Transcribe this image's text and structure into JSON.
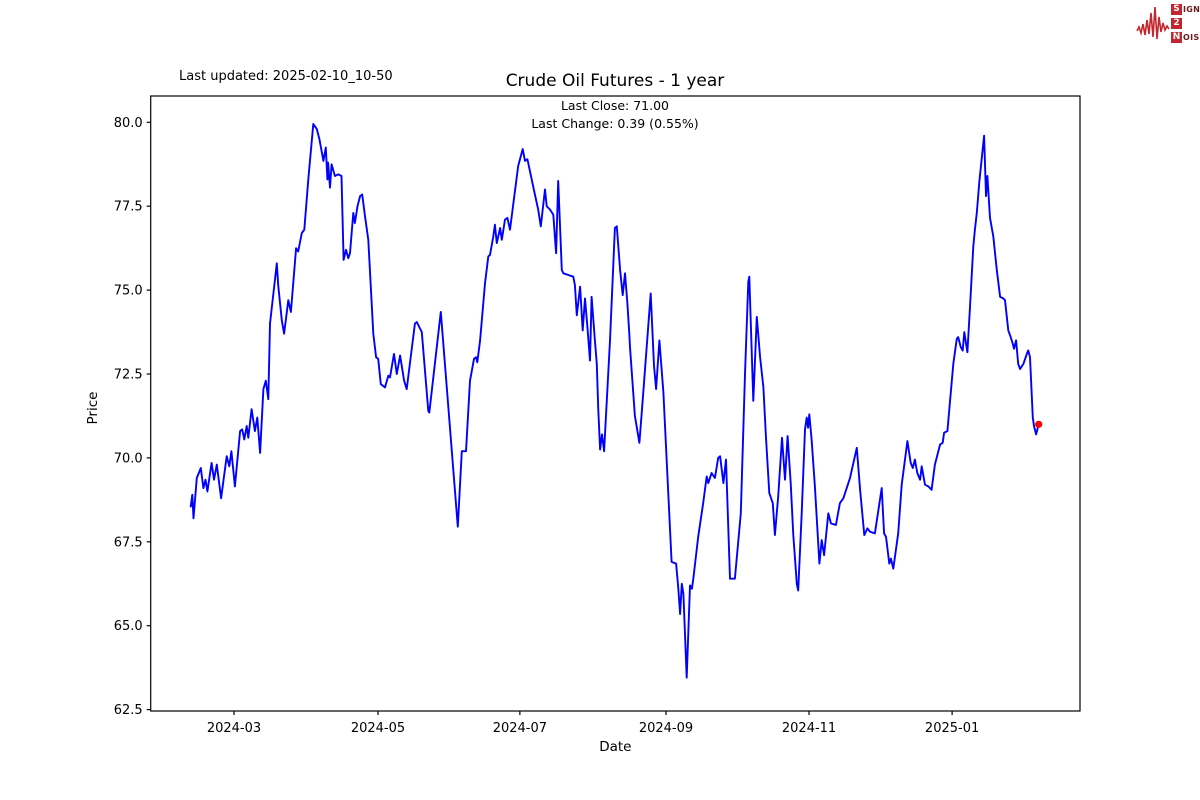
{
  "header": {
    "last_updated": "Last updated: 2025-02-10_10-50",
    "title": "Crude Oil Futures - 1 year",
    "subtitle_line1": "Last Close: 71.00",
    "subtitle_line2": "Last Change: 0.39 (0.55%)"
  },
  "logo": {
    "s": "S",
    "signal_rest": "IGNAL",
    "two": "2",
    "n": "N",
    "noise_rest": "OISE"
  },
  "chart_data": {
    "type": "line",
    "title": "Crude Oil Futures - 1 year",
    "xlabel": "Date",
    "ylabel": "Price",
    "last_close": 71.0,
    "last_change": "0.39 (0.55%)",
    "line_color": "#0000ff",
    "marker_color": "#ff0000",
    "grid": false,
    "ylim": [
      62.4,
      80.8
    ],
    "y_ticks": [
      62.5,
      65.0,
      67.5,
      70.0,
      72.5,
      75.0,
      77.5,
      80.0
    ],
    "x_ticks": [
      {
        "label": "2024-03",
        "d": 18.4
      },
      {
        "label": "2024-05",
        "d": 79.6
      },
      {
        "label": "2024-07",
        "d": 139.9
      },
      {
        "label": "2024-09",
        "d": 202.0
      },
      {
        "label": "2024-11",
        "d": 262.8
      },
      {
        "label": "2025-01",
        "d": 323.6
      }
    ],
    "x_unit": "days since first sample (~2024-02-11)",
    "series": [
      {
        "name": "price",
        "points": [
          [
            0,
            68.55
          ],
          [
            0.7,
            68.9
          ],
          [
            1.2,
            68.2
          ],
          [
            2.6,
            69.4
          ],
          [
            4.3,
            69.7
          ],
          [
            5.4,
            69.1
          ],
          [
            6.3,
            69.35
          ],
          [
            7.1,
            69.0
          ],
          [
            8.9,
            69.85
          ],
          [
            9.9,
            69.35
          ],
          [
            11.1,
            69.8
          ],
          [
            12.9,
            68.8
          ],
          [
            15.3,
            70.05
          ],
          [
            16.4,
            69.75
          ],
          [
            17.3,
            70.2
          ],
          [
            18.8,
            69.15
          ],
          [
            21.0,
            70.8
          ],
          [
            21.9,
            70.85
          ],
          [
            22.8,
            70.55
          ],
          [
            23.8,
            70.95
          ],
          [
            24.5,
            70.6
          ],
          [
            25.9,
            71.45
          ],
          [
            27.3,
            70.8
          ],
          [
            28.3,
            71.2
          ],
          [
            29.5,
            70.15
          ],
          [
            30.9,
            72.05
          ],
          [
            31.9,
            72.3
          ],
          [
            33.0,
            71.75
          ],
          [
            33.7,
            74.0
          ],
          [
            36.6,
            75.8
          ],
          [
            37.2,
            75.15
          ],
          [
            38.7,
            74.1
          ],
          [
            39.7,
            73.7
          ],
          [
            41.5,
            74.7
          ],
          [
            42.6,
            74.35
          ],
          [
            44.8,
            76.25
          ],
          [
            45.7,
            76.15
          ],
          [
            47.2,
            76.7
          ],
          [
            48.3,
            76.8
          ],
          [
            50.0,
            78.3
          ],
          [
            52.1,
            79.95
          ],
          [
            53.6,
            79.8
          ],
          [
            54.7,
            79.5
          ],
          [
            56.4,
            78.85
          ],
          [
            57.4,
            79.25
          ],
          [
            58.1,
            78.3
          ],
          [
            58.4,
            78.8
          ],
          [
            59.2,
            78.05
          ],
          [
            59.9,
            78.75
          ],
          [
            61.3,
            78.4
          ],
          [
            62.7,
            78.45
          ],
          [
            64.1,
            78.4
          ],
          [
            65.0,
            75.9
          ],
          [
            66.0,
            76.2
          ],
          [
            67.0,
            75.95
          ],
          [
            67.7,
            76.1
          ],
          [
            69.1,
            77.3
          ],
          [
            69.8,
            77.0
          ],
          [
            70.9,
            77.5
          ],
          [
            72.0,
            77.8
          ],
          [
            72.9,
            77.85
          ],
          [
            74.1,
            77.2
          ],
          [
            75.5,
            76.5
          ],
          [
            77.6,
            73.7
          ],
          [
            78.8,
            73.0
          ],
          [
            79.7,
            72.95
          ],
          [
            80.8,
            72.2
          ],
          [
            82.6,
            72.1
          ],
          [
            84.0,
            72.45
          ],
          [
            84.7,
            72.4
          ],
          [
            86.4,
            73.1
          ],
          [
            87.6,
            72.5
          ],
          [
            89.0,
            73.05
          ],
          [
            90.7,
            72.3
          ],
          [
            91.8,
            72.05
          ],
          [
            95.3,
            74.0
          ],
          [
            96.1,
            74.05
          ],
          [
            98.2,
            73.75
          ],
          [
            101.0,
            71.4
          ],
          [
            101.4,
            71.35
          ],
          [
            106.3,
            74.35
          ],
          [
            113.5,
            67.95
          ],
          [
            115.2,
            70.2
          ],
          [
            117.0,
            70.2
          ],
          [
            118.7,
            72.3
          ],
          [
            120.4,
            72.95
          ],
          [
            121.3,
            73.0
          ],
          [
            121.8,
            72.85
          ],
          [
            123.0,
            73.5
          ],
          [
            125.1,
            75.2
          ],
          [
            126.5,
            76.0
          ],
          [
            127.2,
            76.05
          ],
          [
            128.6,
            76.6
          ],
          [
            129.3,
            76.95
          ],
          [
            130.1,
            76.4
          ],
          [
            131.5,
            76.85
          ],
          [
            132.2,
            76.5
          ],
          [
            133.6,
            77.1
          ],
          [
            134.6,
            77.15
          ],
          [
            135.7,
            76.8
          ],
          [
            137.0,
            77.5
          ],
          [
            139.2,
            78.7
          ],
          [
            141.1,
            79.2
          ],
          [
            142.1,
            78.85
          ],
          [
            143.1,
            78.9
          ],
          [
            146.3,
            77.85
          ],
          [
            147.7,
            77.4
          ],
          [
            148.8,
            76.9
          ],
          [
            150.6,
            78.0
          ],
          [
            151.3,
            77.5
          ],
          [
            152.7,
            77.4
          ],
          [
            154.1,
            77.25
          ],
          [
            155.3,
            76.1
          ],
          [
            156.2,
            78.25
          ],
          [
            157.7,
            75.6
          ],
          [
            158.4,
            75.5
          ],
          [
            160.5,
            75.45
          ],
          [
            162.6,
            75.4
          ],
          [
            163.3,
            75.15
          ],
          [
            164.1,
            74.25
          ],
          [
            165.5,
            75.1
          ],
          [
            166.6,
            73.8
          ],
          [
            167.6,
            74.75
          ],
          [
            168.6,
            73.9
          ],
          [
            169.7,
            72.9
          ],
          [
            170.4,
            74.8
          ],
          [
            171.8,
            73.5
          ],
          [
            172.6,
            72.8
          ],
          [
            173.2,
            71.5
          ],
          [
            174.0,
            70.25
          ],
          [
            174.8,
            70.7
          ],
          [
            175.7,
            70.2
          ],
          [
            178.2,
            73.5
          ],
          [
            180.3,
            76.85
          ],
          [
            181.1,
            76.9
          ],
          [
            182.5,
            75.6
          ],
          [
            183.6,
            74.85
          ],
          [
            184.6,
            75.5
          ],
          [
            185.6,
            74.6
          ],
          [
            186.4,
            73.7
          ],
          [
            186.7,
            73.3
          ],
          [
            188.8,
            71.25
          ],
          [
            190.7,
            70.45
          ],
          [
            192.2,
            71.8
          ],
          [
            195.5,
            74.9
          ],
          [
            196.9,
            72.75
          ],
          [
            197.8,
            72.05
          ],
          [
            199.2,
            73.5
          ],
          [
            200.9,
            71.95
          ],
          [
            204.4,
            66.9
          ],
          [
            206.3,
            66.85
          ],
          [
            207.2,
            66.15
          ],
          [
            208.0,
            65.35
          ],
          [
            208.7,
            66.25
          ],
          [
            209.4,
            65.95
          ],
          [
            210.8,
            63.45
          ],
          [
            212.2,
            66.2
          ],
          [
            213.0,
            66.1
          ],
          [
            213.6,
            66.4
          ],
          [
            215.7,
            67.65
          ],
          [
            217.9,
            68.7
          ],
          [
            219.3,
            69.45
          ],
          [
            220.0,
            69.25
          ],
          [
            221.4,
            69.55
          ],
          [
            222.8,
            69.4
          ],
          [
            224.2,
            70.0
          ],
          [
            225.0,
            70.05
          ],
          [
            226.4,
            69.25
          ],
          [
            227.5,
            69.95
          ],
          [
            229.2,
            66.4
          ],
          [
            231.3,
            66.4
          ],
          [
            233.8,
            68.35
          ],
          [
            235.6,
            72.5
          ],
          [
            237.0,
            75.25
          ],
          [
            237.4,
            75.4
          ],
          [
            239.1,
            71.7
          ],
          [
            240.6,
            74.2
          ],
          [
            242.0,
            73.0
          ],
          [
            243.4,
            72.1
          ],
          [
            244.5,
            70.6
          ],
          [
            245.9,
            68.95
          ],
          [
            247.4,
            68.65
          ],
          [
            248.3,
            67.7
          ],
          [
            249.7,
            68.85
          ],
          [
            251.3,
            70.6
          ],
          [
            252.6,
            69.35
          ],
          [
            253.7,
            70.65
          ],
          [
            255.0,
            69.25
          ],
          [
            256.1,
            67.7
          ],
          [
            257.6,
            66.25
          ],
          [
            258.2,
            66.05
          ],
          [
            259.7,
            68.35
          ],
          [
            261.1,
            70.85
          ],
          [
            261.8,
            71.2
          ],
          [
            262.4,
            70.9
          ],
          [
            262.9,
            71.3
          ],
          [
            263.9,
            70.55
          ],
          [
            265.3,
            69.15
          ],
          [
            267.2,
            66.85
          ],
          [
            268.2,
            67.55
          ],
          [
            269.2,
            67.1
          ],
          [
            271.0,
            68.35
          ],
          [
            272.1,
            68.05
          ],
          [
            274.2,
            68.0
          ],
          [
            275.9,
            68.65
          ],
          [
            277.4,
            68.8
          ],
          [
            280.2,
            69.4
          ],
          [
            283.1,
            70.3
          ],
          [
            284.5,
            69.05
          ],
          [
            286.3,
            67.7
          ],
          [
            287.6,
            67.9
          ],
          [
            288.7,
            67.8
          ],
          [
            290.8,
            67.75
          ],
          [
            293.7,
            69.1
          ],
          [
            294.7,
            67.75
          ],
          [
            295.5,
            67.65
          ],
          [
            296.9,
            66.85
          ],
          [
            297.6,
            67.0
          ],
          [
            298.6,
            66.7
          ],
          [
            300.7,
            67.75
          ],
          [
            302.2,
            69.2
          ],
          [
            304.6,
            70.5
          ],
          [
            306.0,
            69.85
          ],
          [
            306.9,
            69.7
          ],
          [
            307.8,
            69.95
          ],
          [
            308.8,
            69.55
          ],
          [
            310.0,
            69.35
          ],
          [
            310.7,
            69.75
          ],
          [
            312.1,
            69.2
          ],
          [
            313.5,
            69.15
          ],
          [
            314.9,
            69.05
          ],
          [
            316.3,
            69.8
          ],
          [
            318.5,
            70.4
          ],
          [
            319.6,
            70.45
          ],
          [
            320.2,
            70.75
          ],
          [
            321.6,
            70.8
          ],
          [
            324.1,
            72.8
          ],
          [
            325.6,
            73.55
          ],
          [
            326.2,
            73.6
          ],
          [
            327.3,
            73.3
          ],
          [
            328.1,
            73.2
          ],
          [
            328.8,
            73.75
          ],
          [
            330.1,
            73.15
          ],
          [
            331.2,
            74.5
          ],
          [
            332.6,
            76.3
          ],
          [
            333.3,
            76.8
          ],
          [
            334.1,
            77.3
          ],
          [
            335.2,
            78.25
          ],
          [
            337.2,
            79.6
          ],
          [
            338.0,
            77.8
          ],
          [
            338.6,
            78.4
          ],
          [
            339.7,
            77.15
          ],
          [
            341.1,
            76.6
          ],
          [
            342.6,
            75.6
          ],
          [
            344.0,
            74.8
          ],
          [
            345.4,
            74.75
          ],
          [
            346.1,
            74.7
          ],
          [
            347.5,
            73.8
          ],
          [
            348.5,
            73.6
          ],
          [
            349.4,
            73.4
          ],
          [
            349.9,
            73.25
          ],
          [
            350.8,
            73.5
          ],
          [
            351.7,
            72.8
          ],
          [
            352.5,
            72.65
          ],
          [
            353.9,
            72.8
          ],
          [
            355.6,
            73.15
          ],
          [
            356.0,
            73.2
          ],
          [
            356.7,
            73.0
          ],
          [
            357.9,
            71.2
          ],
          [
            358.4,
            70.95
          ],
          [
            359.3,
            70.7
          ],
          [
            360.4,
            71.0
          ]
        ]
      }
    ]
  }
}
